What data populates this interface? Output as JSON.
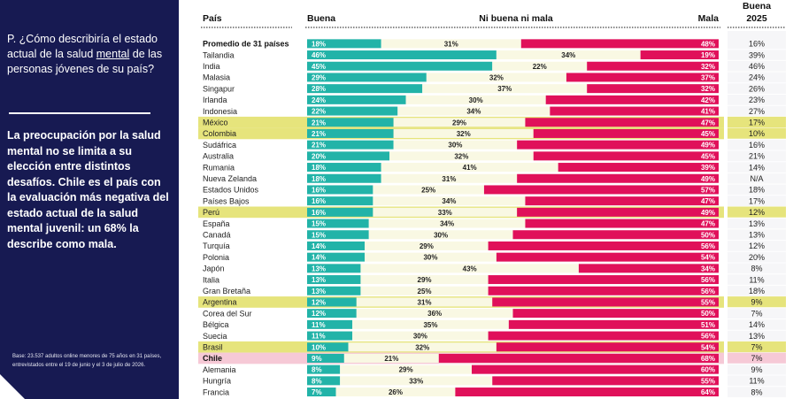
{
  "panel": {
    "question_prefix": "P. ¿Cómo describiría el estado actual de la salud ",
    "question_underlined": "mental",
    "question_suffix": " de las personas jóvenes de su país?",
    "headline": "La preocupación por la salud mental no se limita a su elección entre distintos desafíos. Chile es el país con la evaluación más negativa del estado actual de la salud mental juvenil: un 68% la describe como mala.",
    "base_note": "Base: 23.537 adultos online menores de 75 años en 31 países, entrevistados entre el 19 de junio y el 3 de julio de 2026."
  },
  "colors": {
    "buena": "#22b3a8",
    "neither": "#f9f8e3",
    "mala": "#e0105a",
    "highlight_yellow": "#e6e47c",
    "highlight_pink": "#f6c9d6",
    "panel_bg": "#171a52"
  },
  "chart_data": {
    "type": "bar",
    "stacked": true,
    "orientation": "horizontal",
    "headers": {
      "country": "País",
      "good": "Buena",
      "neither": "Ni buena ni mala",
      "bad": "Mala",
      "good2025_line1": "Buena",
      "good2025_line2": "2025"
    },
    "rows": [
      {
        "country": "Promedio de 31 países",
        "good": 18,
        "neither": 31,
        "bad": 48,
        "good2025": "16%",
        "highlight": "bold"
      },
      {
        "country": "Tailandia",
        "good": 46,
        "neither": 34,
        "bad": 19,
        "good2025": "39%",
        "highlight": ""
      },
      {
        "country": "India",
        "good": 45,
        "neither": 22,
        "bad": 32,
        "good2025": "46%",
        "highlight": ""
      },
      {
        "country": "Malasia",
        "good": 29,
        "neither": 32,
        "bad": 37,
        "good2025": "24%",
        "highlight": ""
      },
      {
        "country": "Singapur",
        "good": 28,
        "neither": 37,
        "bad": 32,
        "good2025": "26%",
        "highlight": ""
      },
      {
        "country": "Irlanda",
        "good": 24,
        "neither": 30,
        "bad": 42,
        "good2025": "23%",
        "highlight": ""
      },
      {
        "country": "Indonesia",
        "good": 22,
        "neither": 34,
        "bad": 41,
        "good2025": "27%",
        "highlight": ""
      },
      {
        "country": "México",
        "good": 21,
        "neither": 29,
        "bad": 47,
        "good2025": "17%",
        "highlight": "yellow"
      },
      {
        "country": "Colombia",
        "good": 21,
        "neither": 32,
        "bad": 45,
        "good2025": "10%",
        "highlight": "yellow"
      },
      {
        "country": "Sudáfrica",
        "good": 21,
        "neither": 30,
        "bad": 49,
        "good2025": "16%",
        "highlight": ""
      },
      {
        "country": "Australia",
        "good": 20,
        "neither": 32,
        "bad": 45,
        "good2025": "21%",
        "highlight": ""
      },
      {
        "country": "Rumania",
        "good": 18,
        "neither": 41,
        "bad": 39,
        "good2025": "14%",
        "highlight": ""
      },
      {
        "country": "Nueva Zelanda",
        "good": 18,
        "neither": 31,
        "bad": 49,
        "good2025": "N/A",
        "highlight": ""
      },
      {
        "country": "Estados Unidos",
        "good": 16,
        "neither": 25,
        "bad": 57,
        "good2025": "18%",
        "highlight": ""
      },
      {
        "country": "Países Bajos",
        "good": 16,
        "neither": 34,
        "bad": 47,
        "good2025": "17%",
        "highlight": ""
      },
      {
        "country": "Perú",
        "good": 16,
        "neither": 33,
        "bad": 49,
        "good2025": "12%",
        "highlight": "yellow"
      },
      {
        "country": "España",
        "good": 15,
        "neither": 34,
        "bad": 47,
        "good2025": "13%",
        "highlight": ""
      },
      {
        "country": "Canadá",
        "good": 15,
        "neither": 30,
        "bad": 50,
        "good2025": "13%",
        "highlight": ""
      },
      {
        "country": "Turquía",
        "good": 14,
        "neither": 29,
        "bad": 56,
        "good2025": "12%",
        "highlight": ""
      },
      {
        "country": "Polonia",
        "good": 14,
        "neither": 30,
        "bad": 54,
        "good2025": "20%",
        "highlight": ""
      },
      {
        "country": "Japón",
        "good": 13,
        "neither": 43,
        "bad": 34,
        "good2025": "8%",
        "highlight": ""
      },
      {
        "country": "Italia",
        "good": 13,
        "neither": 29,
        "bad": 56,
        "good2025": "11%",
        "highlight": ""
      },
      {
        "country": "Gran Bretaña",
        "good": 13,
        "neither": 25,
        "bad": 56,
        "good2025": "18%",
        "highlight": ""
      },
      {
        "country": "Argentina",
        "good": 12,
        "neither": 31,
        "bad": 55,
        "good2025": "9%",
        "highlight": "yellow"
      },
      {
        "country": "Corea del Sur",
        "good": 12,
        "neither": 36,
        "bad": 50,
        "good2025": "7%",
        "highlight": ""
      },
      {
        "country": "Bélgica",
        "good": 11,
        "neither": 35,
        "bad": 51,
        "good2025": "14%",
        "highlight": ""
      },
      {
        "country": "Suecia",
        "good": 11,
        "neither": 30,
        "bad": 56,
        "good2025": "13%",
        "highlight": ""
      },
      {
        "country": "Brasil",
        "good": 10,
        "neither": 32,
        "bad": 54,
        "good2025": "7%",
        "highlight": "yellow"
      },
      {
        "country": "Chile",
        "good": 9,
        "neither": 21,
        "bad": 68,
        "good2025": "7%",
        "highlight": "pink"
      },
      {
        "country": "Alemania",
        "good": 8,
        "neither": 29,
        "bad": 60,
        "good2025": "9%",
        "highlight": ""
      },
      {
        "country": "Hungría",
        "good": 8,
        "neither": 33,
        "bad": 55,
        "good2025": "11%",
        "highlight": ""
      },
      {
        "country": "Francia",
        "good": 7,
        "neither": 26,
        "bad": 64,
        "good2025": "8%",
        "highlight": ""
      }
    ]
  }
}
